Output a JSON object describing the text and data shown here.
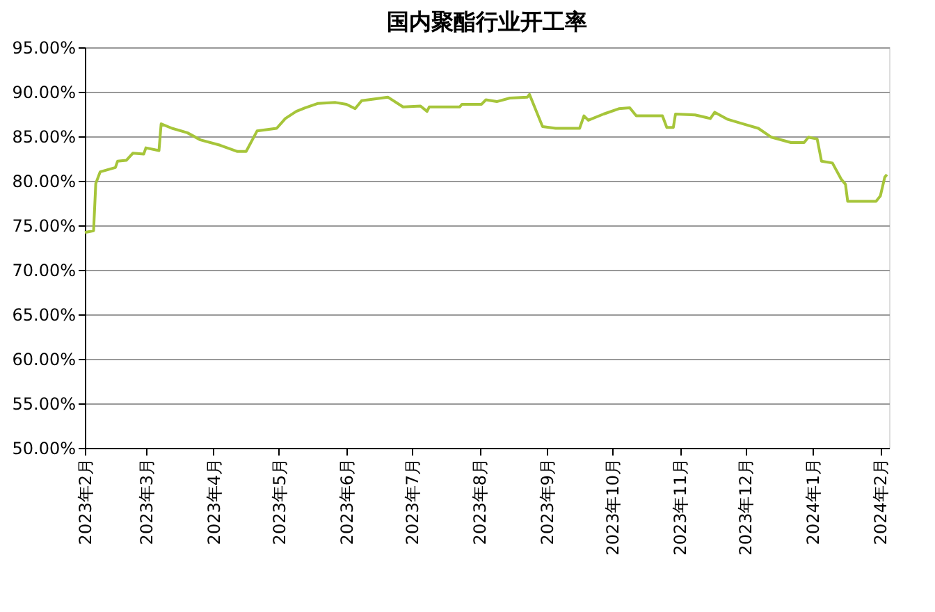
{
  "chart_data": {
    "type": "line",
    "title": "国内聚酯行业开工率",
    "x": [
      "2023-02-01",
      "2023-02-05",
      "2023-02-06",
      "2023-02-08",
      "2023-02-15",
      "2023-02-16",
      "2023-02-20",
      "2023-02-23",
      "2023-02-28",
      "2023-03-01",
      "2023-03-07",
      "2023-03-08",
      "2023-03-13",
      "2023-03-20",
      "2023-03-26",
      "2023-04-04",
      "2023-04-12",
      "2023-04-16",
      "2023-04-21",
      "2023-04-30",
      "2023-05-04",
      "2023-05-09",
      "2023-05-13",
      "2023-05-19",
      "2023-05-27",
      "2023-06-01",
      "2023-06-05",
      "2023-06-08",
      "2023-06-20",
      "2023-06-27",
      "2023-07-05",
      "2023-07-08",
      "2023-07-09",
      "2023-07-23",
      "2023-07-24",
      "2023-08-02",
      "2023-08-04",
      "2023-08-09",
      "2023-08-15",
      "2023-08-23",
      "2023-08-24",
      "2023-08-30",
      "2023-09-05",
      "2023-09-16",
      "2023-09-18",
      "2023-09-20",
      "2023-09-27",
      "2023-10-04",
      "2023-10-09",
      "2023-10-12",
      "2023-10-24",
      "2023-10-26",
      "2023-10-29",
      "2023-10-30",
      "2023-11-08",
      "2023-11-15",
      "2023-11-17",
      "2023-11-23",
      "2023-11-30",
      "2023-12-07",
      "2023-12-13",
      "2023-12-22",
      "2023-12-28",
      "2023-12-30",
      "2024-01-03",
      "2024-01-05",
      "2024-01-10",
      "2024-01-14",
      "2024-01-16",
      "2024-01-17",
      "2024-01-30",
      "2024-02-01",
      "2024-02-03",
      "2024-02-04"
    ],
    "series": [
      {
        "color": "#a6c53a",
        "values": [
          74.2,
          74.4,
          79.7,
          81.0,
          81.5,
          82.2,
          82.3,
          83.1,
          83.0,
          83.7,
          83.4,
          86.4,
          85.9,
          85.4,
          84.6,
          84.0,
          83.3,
          83.3,
          85.6,
          85.9,
          87.0,
          87.8,
          88.2,
          88.7,
          88.8,
          88.6,
          88.1,
          89.0,
          89.4,
          88.3,
          88.4,
          87.8,
          88.3,
          88.3,
          88.6,
          88.6,
          89.1,
          88.9,
          89.3,
          89.4,
          89.7,
          86.1,
          85.9,
          85.9,
          87.3,
          86.8,
          87.5,
          88.1,
          88.2,
          87.3,
          87.3,
          86.0,
          86.0,
          87.5,
          87.4,
          87.0,
          87.7,
          86.9,
          86.4,
          85.9,
          84.9,
          84.3,
          84.3,
          84.9,
          84.7,
          82.2,
          82.0,
          80.2,
          79.6,
          77.7,
          77.7,
          78.3,
          80.4,
          80.7
        ]
      }
    ],
    "xlim": [
      "2023-02-01",
      "2024-02-05"
    ],
    "xticks": [
      {
        "value": "2023-02-01",
        "label": "2023年2月"
      },
      {
        "value": "2023-03-01",
        "label": "2023年3月"
      },
      {
        "value": "2023-04-01",
        "label": "2023年4月"
      },
      {
        "value": "2023-05-01",
        "label": "2023年5月"
      },
      {
        "value": "2023-06-01",
        "label": "2023年6月"
      },
      {
        "value": "2023-07-01",
        "label": "2023年7月"
      },
      {
        "value": "2023-08-01",
        "label": "2023年8月"
      },
      {
        "value": "2023-09-01",
        "label": "2023年9月"
      },
      {
        "value": "2023-10-01",
        "label": "2023年10月"
      },
      {
        "value": "2023-11-01",
        "label": "2023年11月"
      },
      {
        "value": "2023-12-01",
        "label": "2023年12月"
      },
      {
        "value": "2024-01-01",
        "label": "2024年1月"
      },
      {
        "value": "2024-02-01",
        "label": "2024年2月"
      }
    ],
    "ylim": [
      50,
      95
    ],
    "yticks": [
      {
        "value": 50,
        "label": "50.00%"
      },
      {
        "value": 55,
        "label": "55.00%"
      },
      {
        "value": 60,
        "label": "60.00%"
      },
      {
        "value": 65,
        "label": "65.00%"
      },
      {
        "value": 70,
        "label": "70.00%"
      },
      {
        "value": 75,
        "label": "75.00%"
      },
      {
        "value": 80,
        "label": "80.00%"
      },
      {
        "value": 85,
        "label": "85.00%"
      },
      {
        "value": 90,
        "label": "90.00%"
      },
      {
        "value": 95,
        "label": "95.00%"
      }
    ],
    "grid": "y",
    "marker": "none",
    "line_style": "solid"
  }
}
